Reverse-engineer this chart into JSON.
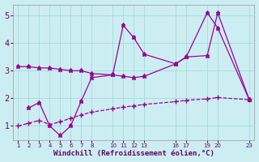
{
  "background_color": "#cceef2",
  "grid_color": "#aadddd",
  "line_color": "#990099",
  "xlabel": "Windchill (Refroidissement éolien,°C)",
  "xlabel_color": "#660066",
  "tick_color": "#660066",
  "ylim": [
    0.5,
    5.4
  ],
  "yticks": [
    1,
    2,
    3,
    4,
    5
  ],
  "xlim": [
    0.5,
    23.5
  ],
  "xtick_positions": [
    1,
    2,
    3,
    4,
    5,
    6,
    7,
    8,
    10,
    11,
    12,
    13,
    16,
    17,
    19,
    20,
    23
  ],
  "xtick_labels": [
    "1",
    "2",
    "3",
    "4",
    "5",
    "6",
    "7",
    "8",
    "10",
    "11",
    "12",
    "13",
    "16",
    "17",
    "19",
    "20",
    "23"
  ],
  "line1_x": [
    1,
    2,
    3,
    4,
    5,
    6,
    7,
    8,
    10,
    11,
    12,
    13,
    16,
    17,
    19,
    20,
    23
  ],
  "line1_y": [
    3.15,
    3.15,
    3.1,
    3.1,
    3.05,
    3.0,
    3.0,
    2.9,
    2.85,
    2.8,
    2.75,
    2.8,
    3.25,
    3.5,
    5.1,
    4.55,
    1.95
  ],
  "line2_x": [
    2,
    3,
    4,
    5,
    6,
    7,
    8,
    10,
    11,
    12,
    13,
    16,
    17,
    19,
    20,
    23
  ],
  "line2_y": [
    1.65,
    1.85,
    1.0,
    0.65,
    1.0,
    1.9,
    2.75,
    2.85,
    4.65,
    4.2,
    3.6,
    3.25,
    3.5,
    3.55,
    5.1,
    1.95
  ],
  "line3_x": [
    1,
    2,
    3,
    4,
    5,
    6,
    7,
    8,
    10,
    11,
    12,
    13,
    16,
    17,
    19,
    20,
    23
  ],
  "line3_y": [
    1.0,
    1.1,
    1.2,
    1.05,
    1.15,
    1.28,
    1.4,
    1.5,
    1.62,
    1.68,
    1.73,
    1.78,
    1.88,
    1.93,
    1.98,
    2.03,
    1.95
  ]
}
